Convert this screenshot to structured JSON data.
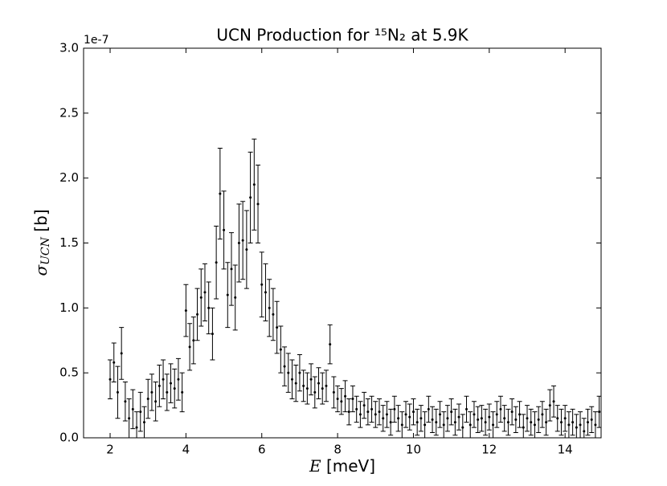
{
  "chart_data": {
    "type": "errorbar",
    "title": "UCN Production for ¹⁵N₂ at 5.9K",
    "xlabel": {
      "symbol": "E",
      "unit": "[meV]"
    },
    "ylabel": {
      "symbol": "σ",
      "subscript": "UCN",
      "unit": "[b]"
    },
    "offset_label": "1e-7",
    "color": "#000000",
    "xlim": [
      1.3,
      14.95
    ],
    "ylim": [
      0,
      3.0
    ],
    "xticks": [
      2,
      4,
      6,
      8,
      10,
      12,
      14
    ],
    "yticks": [
      {
        "value": 0,
        "label": "0.0"
      },
      0.5,
      {
        "value": 1,
        "label": "1.0"
      },
      1.5,
      {
        "value": 2,
        "label": "2.0"
      },
      2.5,
      {
        "value": 3,
        "label": "3.0"
      }
    ],
    "x": [
      2.0,
      2.1,
      2.2,
      2.3,
      2.4,
      2.5,
      2.6,
      2.7,
      2.8,
      2.9,
      3.0,
      3.1,
      3.2,
      3.3,
      3.4,
      3.5,
      3.6,
      3.7,
      3.8,
      3.9,
      4.0,
      4.1,
      4.2,
      4.3,
      4.4,
      4.5,
      4.6,
      4.7,
      4.8,
      4.9,
      5.0,
      5.1,
      5.2,
      5.3,
      5.4,
      5.5,
      5.6,
      5.7,
      5.8,
      5.9,
      6.0,
      6.1,
      6.2,
      6.3,
      6.4,
      6.5,
      6.6,
      6.7,
      6.8,
      6.9,
      7.0,
      7.1,
      7.2,
      7.3,
      7.4,
      7.5,
      7.6,
      7.7,
      7.8,
      7.9,
      8.0,
      8.1,
      8.2,
      8.3,
      8.4,
      8.5,
      8.6,
      8.7,
      8.8,
      8.9,
      9.0,
      9.1,
      9.2,
      9.3,
      9.4,
      9.5,
      9.6,
      9.7,
      9.8,
      9.9,
      10.0,
      10.1,
      10.2,
      10.3,
      10.4,
      10.5,
      10.6,
      10.7,
      10.8,
      10.9,
      11.0,
      11.1,
      11.2,
      11.3,
      11.4,
      11.5,
      11.6,
      11.7,
      11.8,
      11.9,
      12.0,
      12.1,
      12.2,
      12.3,
      12.4,
      12.5,
      12.6,
      12.7,
      12.8,
      12.9,
      13.0,
      13.1,
      13.2,
      13.3,
      13.4,
      13.5,
      13.6,
      13.7,
      13.8,
      13.9,
      14.0,
      14.1,
      14.2,
      14.3,
      14.4,
      14.5,
      14.6,
      14.7,
      14.8,
      14.9
    ],
    "values": [
      0.45,
      0.58,
      0.35,
      0.65,
      0.28,
      0.15,
      0.22,
      0.08,
      0.2,
      0.12,
      0.3,
      0.35,
      0.28,
      0.4,
      0.45,
      0.35,
      0.42,
      0.38,
      0.45,
      0.35,
      0.98,
      0.7,
      0.75,
      0.95,
      1.08,
      1.12,
      1.0,
      0.8,
      1.35,
      1.88,
      1.6,
      1.1,
      1.3,
      1.08,
      1.5,
      1.52,
      1.45,
      1.85,
      1.95,
      1.8,
      1.18,
      1.12,
      1.0,
      0.95,
      0.85,
      0.68,
      0.55,
      0.5,
      0.45,
      0.42,
      0.5,
      0.4,
      0.38,
      0.45,
      0.35,
      0.42,
      0.38,
      0.4,
      0.72,
      0.35,
      0.3,
      0.28,
      0.32,
      0.2,
      0.3,
      0.22,
      0.18,
      0.25,
      0.2,
      0.22,
      0.18,
      0.2,
      0.15,
      0.18,
      0.12,
      0.22,
      0.15,
      0.1,
      0.18,
      0.16,
      0.2,
      0.12,
      0.15,
      0.1,
      0.22,
      0.14,
      0.12,
      0.18,
      0.1,
      0.15,
      0.2,
      0.12,
      0.16,
      0.08,
      0.22,
      0.1,
      0.18,
      0.14,
      0.15,
      0.12,
      0.16,
      0.1,
      0.18,
      0.22,
      0.15,
      0.12,
      0.2,
      0.14,
      0.18,
      0.08,
      0.15,
      0.12,
      0.1,
      0.14,
      0.18,
      0.12,
      0.25,
      0.28,
      0.15,
      0.12,
      0.15,
      0.1,
      0.12,
      0.08,
      0.1,
      0.05,
      0.12,
      0.14,
      0.1,
      0.2
    ],
    "errors": [
      0.15,
      0.15,
      0.2,
      0.2,
      0.15,
      0.15,
      0.15,
      0.12,
      0.15,
      0.12,
      0.15,
      0.14,
      0.15,
      0.16,
      0.15,
      0.14,
      0.15,
      0.15,
      0.16,
      0.15,
      0.2,
      0.18,
      0.18,
      0.2,
      0.22,
      0.22,
      0.2,
      0.2,
      0.28,
      0.35,
      0.3,
      0.25,
      0.28,
      0.25,
      0.3,
      0.3,
      0.3,
      0.35,
      0.35,
      0.3,
      0.25,
      0.22,
      0.22,
      0.2,
      0.2,
      0.18,
      0.15,
      0.15,
      0.15,
      0.14,
      0.14,
      0.12,
      0.12,
      0.12,
      0.12,
      0.12,
      0.12,
      0.12,
      0.15,
      0.12,
      0.1,
      0.1,
      0.12,
      0.1,
      0.1,
      0.1,
      0.1,
      0.1,
      0.1,
      0.1,
      0.1,
      0.1,
      0.1,
      0.1,
      0.1,
      0.1,
      0.1,
      0.1,
      0.1,
      0.1,
      0.1,
      0.1,
      0.1,
      0.1,
      0.1,
      0.1,
      0.1,
      0.1,
      0.1,
      0.1,
      0.1,
      0.1,
      0.1,
      0.1,
      0.1,
      0.1,
      0.1,
      0.1,
      0.1,
      0.1,
      0.1,
      0.1,
      0.1,
      0.1,
      0.1,
      0.1,
      0.1,
      0.1,
      0.1,
      0.1,
      0.1,
      0.1,
      0.1,
      0.1,
      0.1,
      0.1,
      0.12,
      0.12,
      0.1,
      0.1,
      0.1,
      0.1,
      0.1,
      0.1,
      0.1,
      0.1,
      0.1,
      0.1,
      0.1,
      0.12
    ]
  }
}
